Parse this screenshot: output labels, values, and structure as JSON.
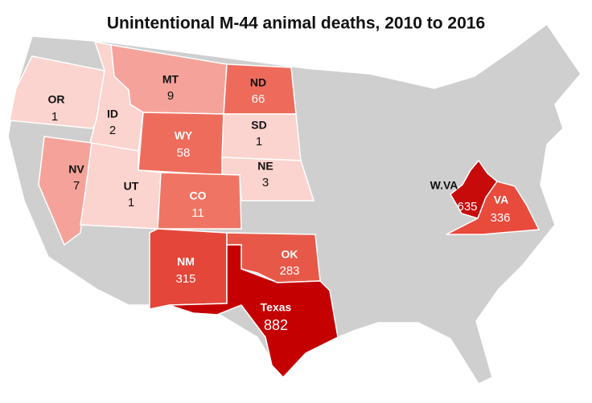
{
  "title": "Unintentional M-44 animal deaths, 2010 to 2016",
  "states": [
    {
      "name": "OR",
      "value": 1,
      "color": "#fbd3cf"
    },
    {
      "name": "ID",
      "value": 2,
      "color": "#fbd3cf"
    },
    {
      "name": "MT",
      "value": 9,
      "color": "#f5a39a"
    },
    {
      "name": "ND",
      "value": 66,
      "color": "#ee6a5a"
    },
    {
      "name": "WY",
      "value": 58,
      "color": "#ee6c5b"
    },
    {
      "name": "SD",
      "value": 1,
      "color": "#fbd3cf"
    },
    {
      "name": "NE",
      "value": 3,
      "color": "#fbd3cf"
    },
    {
      "name": "NV",
      "value": 7,
      "color": "#f5a39a"
    },
    {
      "name": "UT",
      "value": 1,
      "color": "#fbd3cf"
    },
    {
      "name": "CO",
      "value": 11,
      "color": "#f07463"
    },
    {
      "name": "NM",
      "value": 315,
      "color": "#e4463a"
    },
    {
      "name": "OK",
      "value": 283,
      "color": "#e85848"
    },
    {
      "name": "Texas",
      "value": 882,
      "color": "#c50000"
    },
    {
      "name": "W.VA",
      "value": 635,
      "color": "#c70b0b"
    },
    {
      "name": "VA",
      "value": 336,
      "color": "#e84a3c"
    }
  ]
}
